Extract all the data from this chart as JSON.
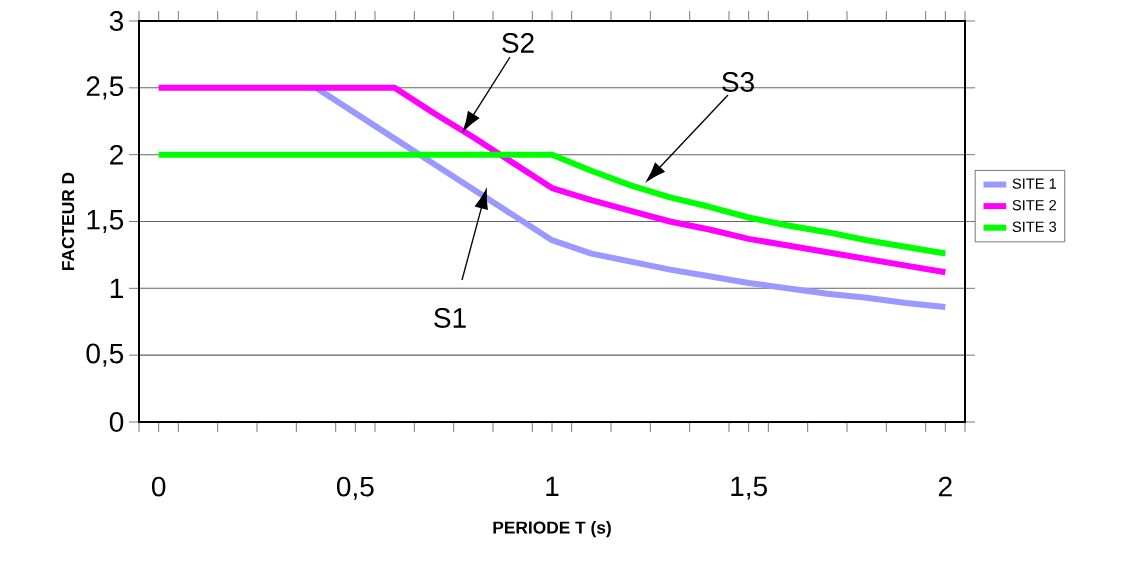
{
  "chart_data": {
    "type": "line",
    "xlabel": "PERIODE  T (s)",
    "ylabel": "FACTEUR  D",
    "x": [
      0,
      0.1,
      0.2,
      0.3,
      0.4,
      0.5,
      0.6,
      0.7,
      0.8,
      0.9,
      1.0,
      1.1,
      1.2,
      1.3,
      1.4,
      1.5,
      1.6,
      1.7,
      1.8,
      1.9,
      2.0
    ],
    "series": [
      {
        "name": "SITE 1",
        "color": "#9999ff",
        "values": [
          null,
          null,
          null,
          null,
          2.5,
          2.31,
          2.12,
          1.93,
          1.74,
          1.55,
          1.36,
          1.26,
          1.2,
          1.14,
          1.09,
          1.04,
          1.0,
          0.96,
          0.93,
          0.89,
          0.86
        ]
      },
      {
        "name": "SITE 2",
        "color": "#ff00ff",
        "values": [
          2.5,
          2.5,
          2.5,
          2.5,
          2.5,
          2.5,
          2.5,
          2.31,
          2.13,
          1.94,
          1.75,
          1.66,
          1.58,
          1.5,
          1.44,
          1.37,
          1.32,
          1.27,
          1.22,
          1.17,
          1.12
        ]
      },
      {
        "name": "SITE 3",
        "color": "#00ff00",
        "values": [
          2,
          2,
          2,
          2,
          2,
          2,
          2,
          2,
          2,
          2,
          2,
          1.88,
          1.77,
          1.68,
          1.61,
          1.53,
          1.47,
          1.42,
          1.36,
          1.31,
          1.26
        ]
      }
    ],
    "annotations": [
      "S1",
      "S2",
      "S3"
    ],
    "xlim": [
      -0.05,
      2.05
    ],
    "ylim": [
      0,
      3
    ],
    "xticks": [
      0,
      {
        "value": 0.5,
        "label": "0,5"
      },
      1,
      {
        "value": 1.5,
        "label": "1,5"
      },
      2,
      {
        "value": -0.05,
        "label": null
      },
      {
        "value": 0.05,
        "label": null
      },
      {
        "value": 0.15,
        "label": null
      },
      {
        "value": 0.25,
        "label": null
      },
      {
        "value": 0.35,
        "label": null
      },
      {
        "value": 0.45,
        "label": null
      },
      {
        "value": 0.55,
        "label": null
      },
      {
        "value": 0.65,
        "label": null
      },
      {
        "value": 0.75,
        "label": null
      },
      {
        "value": 0.85,
        "label": null
      },
      {
        "value": 0.95,
        "label": null
      },
      {
        "value": 1.05,
        "label": null
      },
      {
        "value": 1.15,
        "label": null
      },
      {
        "value": 1.25,
        "label": null
      },
      {
        "value": 1.35,
        "label": null
      },
      {
        "value": 1.45,
        "label": null
      },
      {
        "value": 1.55,
        "label": null
      },
      {
        "value": 1.65,
        "label": null
      },
      {
        "value": 1.75,
        "label": null
      },
      {
        "value": 1.85,
        "label": null
      },
      {
        "value": 1.95,
        "label": null
      },
      {
        "value": 2.05,
        "label": null
      }
    ],
    "yticks": [
      0,
      {
        "value": 0.5,
        "label": "0,5"
      },
      1,
      {
        "value": 1.5,
        "label": "1,5"
      },
      2,
      {
        "value": 2.5,
        "label": "2,5"
      },
      3
    ],
    "grid": "y",
    "legend": "right",
    "marker": "none",
    "line_style": "solid"
  }
}
